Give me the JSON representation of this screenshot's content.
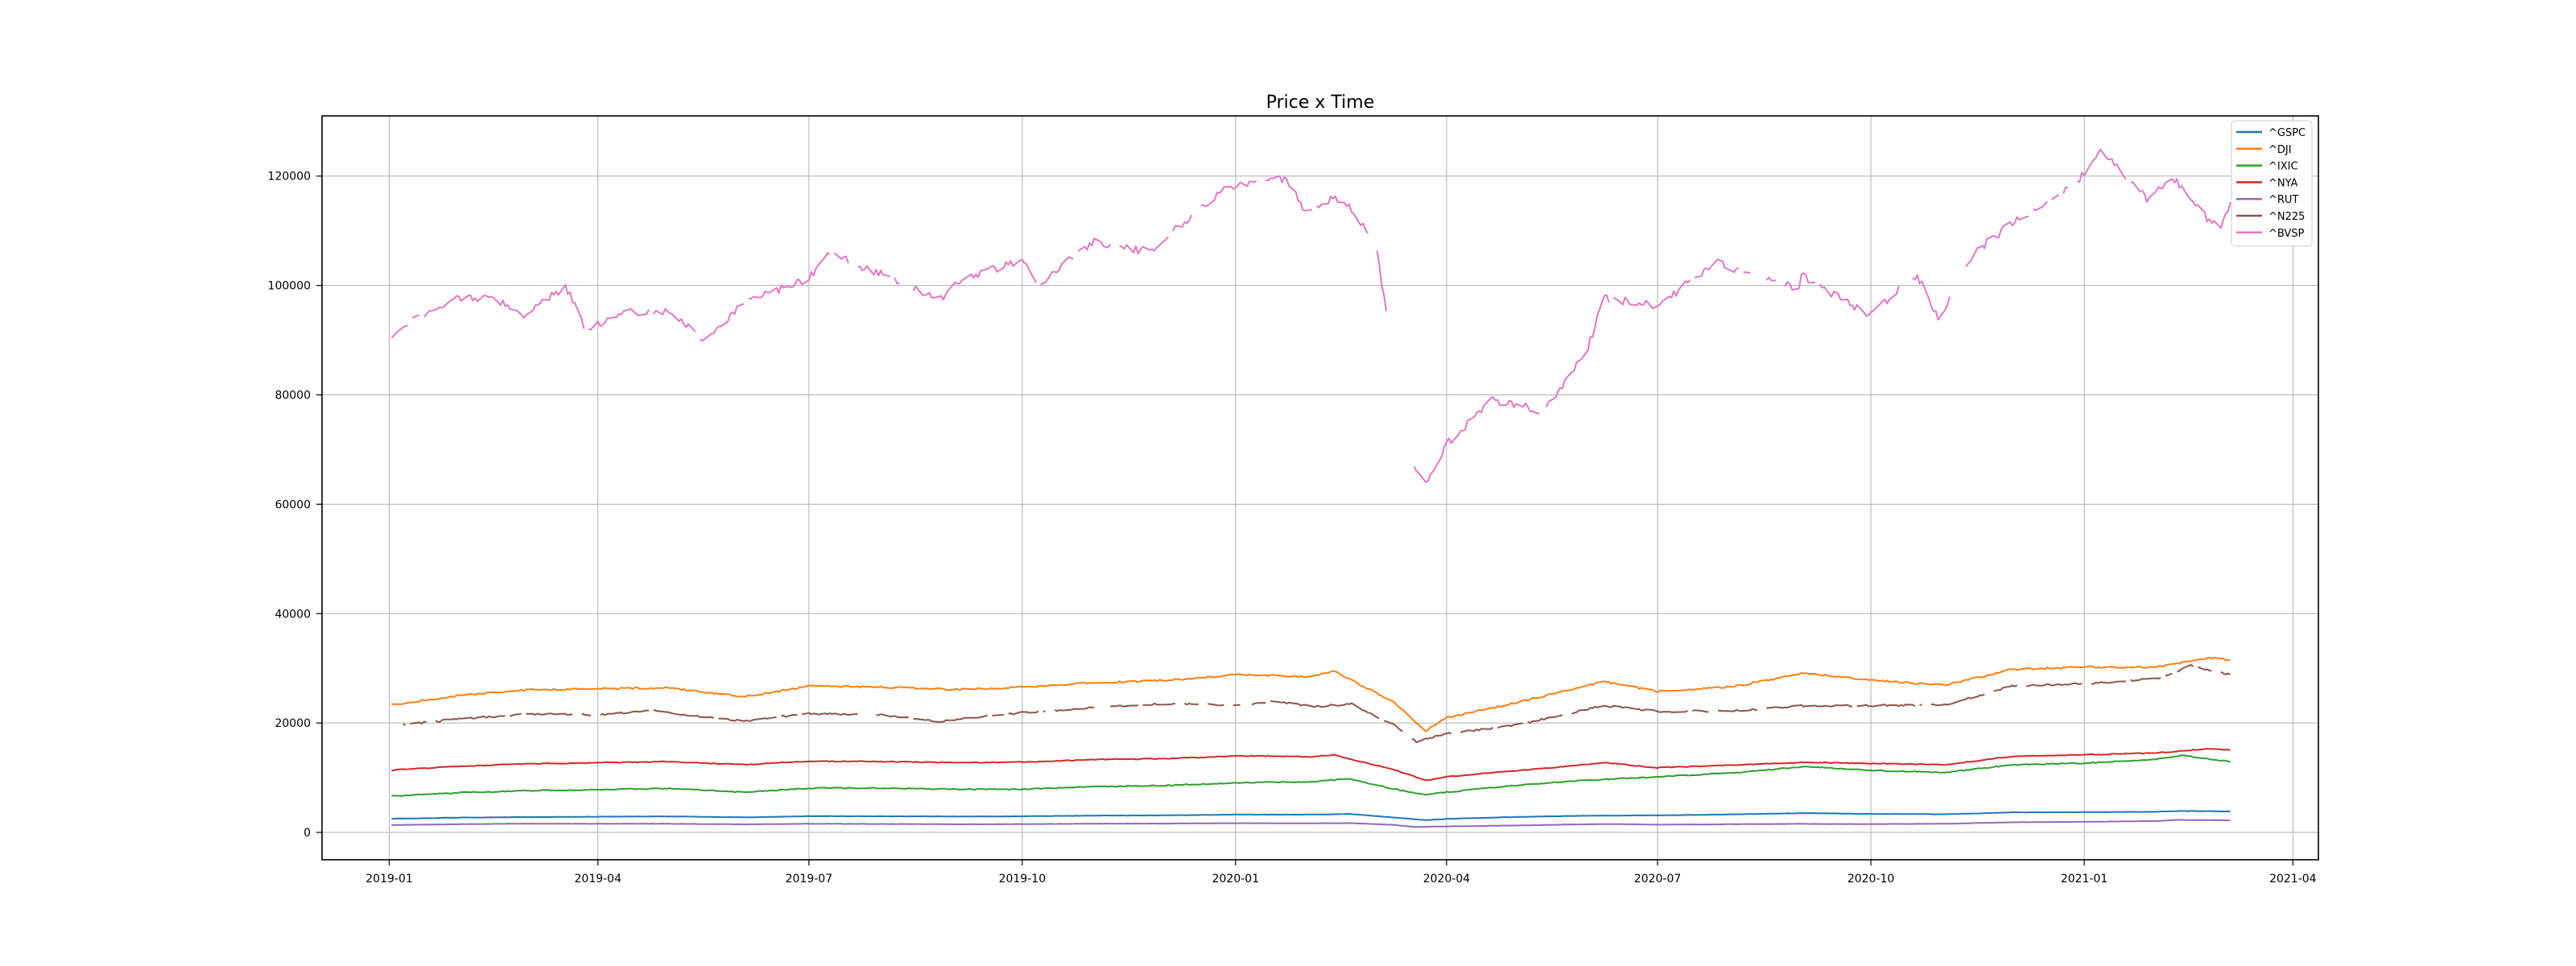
{
  "chart_data": {
    "type": "line",
    "title": "Price x Time",
    "xlabel": "",
    "ylabel": "",
    "x_ticks": [
      "2019-01",
      "2019-04",
      "2019-07",
      "2019-10",
      "2020-01",
      "2020-04",
      "2020-07",
      "2020-10",
      "2021-01",
      "2021-04"
    ],
    "y_ticks": [
      0,
      20000,
      40000,
      60000,
      80000,
      100000,
      120000
    ],
    "xlim": [
      "2018-12-03",
      "2021-04-12"
    ],
    "ylim": [
      -5000,
      131000
    ],
    "grid": true,
    "legend_position": "top-right",
    "series": [
      {
        "name": "^GSPC",
        "color": "#1f77b4",
        "points": [
          [
            "2019-01-02",
            2510
          ],
          [
            "2019-02-01",
            2706
          ],
          [
            "2019-03-01",
            2803
          ],
          [
            "2019-04-01",
            2867
          ],
          [
            "2019-05-01",
            2923
          ],
          [
            "2019-06-03",
            2744
          ],
          [
            "2019-07-01",
            2964
          ],
          [
            "2019-08-01",
            2953
          ],
          [
            "2019-09-03",
            2906
          ],
          [
            "2019-10-01",
            2940
          ],
          [
            "2019-11-01",
            3066
          ],
          [
            "2019-12-02",
            3113
          ],
          [
            "2020-01-02",
            3257
          ],
          [
            "2020-02-03",
            3248
          ],
          [
            "2020-02-19",
            3386
          ],
          [
            "2020-03-09",
            2746
          ],
          [
            "2020-03-23",
            2237
          ],
          [
            "2020-04-01",
            2470
          ],
          [
            "2020-05-01",
            2830
          ],
          [
            "2020-06-01",
            3055
          ],
          [
            "2020-07-01",
            3115
          ],
          [
            "2020-08-03",
            3294
          ],
          [
            "2020-09-01",
            3526
          ],
          [
            "2020-10-01",
            3380
          ],
          [
            "2020-11-02",
            3310
          ],
          [
            "2020-12-01",
            3662
          ],
          [
            "2021-01-04",
            3700
          ],
          [
            "2021-02-01",
            3773
          ],
          [
            "2021-02-12",
            3934
          ],
          [
            "2021-03-05",
            3840
          ]
        ]
      },
      {
        "name": "^DJI",
        "color": "#ff7f0e",
        "points": [
          [
            "2019-01-02",
            23346
          ],
          [
            "2019-02-01",
            25063
          ],
          [
            "2019-03-01",
            26026
          ],
          [
            "2019-04-01",
            26258
          ],
          [
            "2019-05-01",
            26430
          ],
          [
            "2019-06-03",
            24819
          ],
          [
            "2019-07-01",
            26717
          ],
          [
            "2019-08-01",
            26583
          ],
          [
            "2019-09-03",
            26118
          ],
          [
            "2019-10-01",
            26573
          ],
          [
            "2019-11-01",
            27347
          ],
          [
            "2019-12-02",
            27783
          ],
          [
            "2020-01-02",
            28868
          ],
          [
            "2020-02-03",
            28399
          ],
          [
            "2020-02-12",
            29551
          ],
          [
            "2020-03-09",
            23851
          ],
          [
            "2020-03-23",
            18591
          ],
          [
            "2020-04-01",
            20943
          ],
          [
            "2020-05-01",
            23724
          ],
          [
            "2020-06-08",
            27572
          ],
          [
            "2020-07-01",
            25734
          ],
          [
            "2020-08-03",
            26664
          ],
          [
            "2020-09-02",
            29100
          ],
          [
            "2020-10-01",
            27816
          ],
          [
            "2020-11-02",
            26925
          ],
          [
            "2020-12-01",
            29823
          ],
          [
            "2021-01-04",
            30223
          ],
          [
            "2021-02-01",
            30212
          ],
          [
            "2021-02-24",
            31961
          ],
          [
            "2021-03-05",
            31496
          ]
        ]
      },
      {
        "name": "^IXIC",
        "color": "#2ca02c",
        "points": [
          [
            "2019-01-02",
            6665
          ],
          [
            "2019-02-01",
            7263
          ],
          [
            "2019-03-01",
            7595
          ],
          [
            "2019-04-01",
            7828
          ],
          [
            "2019-05-01",
            8049
          ],
          [
            "2019-06-03",
            7333
          ],
          [
            "2019-07-01",
            8091
          ],
          [
            "2019-08-01",
            8111
          ],
          [
            "2019-09-03",
            7874
          ],
          [
            "2019-10-01",
            7908
          ],
          [
            "2019-11-01",
            8386
          ],
          [
            "2019-12-02",
            8567
          ],
          [
            "2020-01-02",
            9092
          ],
          [
            "2020-02-03",
            9273
          ],
          [
            "2020-02-19",
            9817
          ],
          [
            "2020-03-09",
            7950
          ],
          [
            "2020-03-23",
            6860
          ],
          [
            "2020-04-01",
            7360
          ],
          [
            "2020-05-01",
            8604
          ],
          [
            "2020-06-01",
            9552
          ],
          [
            "2020-07-01",
            10154
          ],
          [
            "2020-08-03",
            10902
          ],
          [
            "2020-09-02",
            12056
          ],
          [
            "2020-10-01",
            11326
          ],
          [
            "2020-11-02",
            10957
          ],
          [
            "2020-12-01",
            12355
          ],
          [
            "2021-01-04",
            12698
          ],
          [
            "2021-02-01",
            13403
          ],
          [
            "2021-02-12",
            14095
          ],
          [
            "2021-03-05",
            12920
          ]
        ]
      },
      {
        "name": "^NYA",
        "color": "#d62728",
        "points": [
          [
            "2019-01-02",
            11370
          ],
          [
            "2019-02-01",
            12110
          ],
          [
            "2019-03-01",
            12520
          ],
          [
            "2019-04-01",
            12750
          ],
          [
            "2019-05-01",
            12950
          ],
          [
            "2019-06-03",
            12380
          ],
          [
            "2019-07-01",
            13030
          ],
          [
            "2019-08-01",
            12960
          ],
          [
            "2019-09-03",
            12730
          ],
          [
            "2019-10-01",
            12850
          ],
          [
            "2019-11-01",
            13320
          ],
          [
            "2019-12-02",
            13450
          ],
          [
            "2020-01-02",
            14010
          ],
          [
            "2020-02-03",
            13830
          ],
          [
            "2020-02-12",
            14180
          ],
          [
            "2020-03-09",
            11560
          ],
          [
            "2020-03-23",
            9470
          ],
          [
            "2020-04-01",
            10180
          ],
          [
            "2020-05-01",
            11250
          ],
          [
            "2020-06-08",
            12720
          ],
          [
            "2020-07-01",
            11830
          ],
          [
            "2020-08-03",
            12320
          ],
          [
            "2020-09-02",
            12820
          ],
          [
            "2020-10-01",
            12600
          ],
          [
            "2020-11-02",
            12360
          ],
          [
            "2020-12-01",
            13920
          ],
          [
            "2021-01-04",
            14230
          ],
          [
            "2021-02-01",
            14520
          ],
          [
            "2021-02-24",
            15330
          ],
          [
            "2021-03-05",
            15050
          ]
        ]
      },
      {
        "name": "^RUT",
        "color": "#9467bd",
        "points": [
          [
            "2019-01-02",
            1349
          ],
          [
            "2019-02-01",
            1503
          ],
          [
            "2019-03-01",
            1590
          ],
          [
            "2019-04-01",
            1583
          ],
          [
            "2019-05-01",
            1591
          ],
          [
            "2019-06-03",
            1469
          ],
          [
            "2019-07-01",
            1567
          ],
          [
            "2019-08-01",
            1550
          ],
          [
            "2019-09-03",
            1477
          ],
          [
            "2019-10-01",
            1512
          ],
          [
            "2019-11-01",
            1596
          ],
          [
            "2019-12-02",
            1623
          ],
          [
            "2020-01-02",
            1683
          ],
          [
            "2020-02-03",
            1660
          ],
          [
            "2020-02-19",
            1700
          ],
          [
            "2020-03-09",
            1380
          ],
          [
            "2020-03-18",
            991
          ],
          [
            "2020-04-01",
            1090
          ],
          [
            "2020-05-01",
            1260
          ],
          [
            "2020-06-08",
            1536
          ],
          [
            "2020-07-01",
            1410
          ],
          [
            "2020-08-03",
            1495
          ],
          [
            "2020-09-01",
            1560
          ],
          [
            "2020-10-01",
            1522
          ],
          [
            "2020-11-02",
            1574
          ],
          [
            "2020-12-01",
            1846
          ],
          [
            "2021-01-04",
            1945
          ],
          [
            "2021-02-01",
            2076
          ],
          [
            "2021-02-09",
            2285
          ],
          [
            "2021-03-05",
            2192
          ]
        ]
      },
      {
        "name": "^N225",
        "color": "#8c564b",
        "gaps": true,
        "points": [
          [
            "2019-01-04",
            19561
          ],
          [
            "2019-02-01",
            20788
          ],
          [
            "2019-03-01",
            21602
          ],
          [
            "2019-04-01",
            21509
          ],
          [
            "2019-04-25",
            22307
          ],
          [
            "2019-05-13",
            21191
          ],
          [
            "2019-06-03",
            20410
          ],
          [
            "2019-07-01",
            21730
          ],
          [
            "2019-08-01",
            21540
          ],
          [
            "2019-08-26",
            20261
          ],
          [
            "2019-09-02",
            20620
          ],
          [
            "2019-10-01",
            21885
          ],
          [
            "2019-11-01",
            22850
          ],
          [
            "2019-12-02",
            23529
          ],
          [
            "2020-01-06",
            23204
          ],
          [
            "2020-01-17",
            24041
          ],
          [
            "2020-02-03",
            22971
          ],
          [
            "2020-02-20",
            23479
          ],
          [
            "2020-03-09",
            19698
          ],
          [
            "2020-03-19",
            16552
          ],
          [
            "2020-04-01",
            18065
          ],
          [
            "2020-05-01",
            19619
          ],
          [
            "2020-06-08",
            23178
          ],
          [
            "2020-07-01",
            22121
          ],
          [
            "2020-08-03",
            22195
          ],
          [
            "2020-09-01",
            23138
          ],
          [
            "2020-10-01",
            23185
          ],
          [
            "2020-11-02",
            23295
          ],
          [
            "2020-12-01",
            26787
          ],
          [
            "2021-01-04",
            27258
          ],
          [
            "2021-02-01",
            28091
          ],
          [
            "2021-02-16",
            30467
          ],
          [
            "2021-03-05",
            28864
          ]
        ]
      },
      {
        "name": "^BVSP",
        "color": "#e377c2",
        "gaps": true,
        "points": [
          [
            "2019-01-02",
            91012
          ],
          [
            "2019-01-14",
            94474
          ],
          [
            "2019-02-01",
            97861
          ],
          [
            "2019-02-15",
            97526
          ],
          [
            "2019-03-01",
            94604
          ],
          [
            "2019-03-18",
            99993
          ],
          [
            "2019-03-27",
            91903
          ],
          [
            "2019-04-10",
            95000
          ],
          [
            "2019-05-03",
            95064
          ],
          [
            "2019-05-17",
            89993
          ],
          [
            "2019-06-03",
            97020
          ],
          [
            "2019-07-01",
            101339
          ],
          [
            "2019-07-10",
            105817
          ],
          [
            "2019-08-01",
            102126
          ],
          [
            "2019-08-26",
            97276
          ],
          [
            "2019-09-03",
            100625
          ],
          [
            "2019-10-01",
            104745
          ],
          [
            "2019-10-08",
            99981
          ],
          [
            "2019-11-01",
            108195
          ],
          [
            "2019-11-26",
            106000
          ],
          [
            "2019-12-02",
            108927
          ],
          [
            "2019-12-26",
            117203
          ],
          [
            "2020-01-02",
            118573
          ],
          [
            "2020-01-23",
            119527
          ],
          [
            "2020-01-31",
            113761
          ],
          [
            "2020-02-13",
            116000
          ],
          [
            "2020-02-21",
            113681
          ],
          [
            "2020-03-02",
            106625
          ],
          [
            "2020-03-09",
            86067
          ],
          [
            "2020-03-18",
            66895
          ],
          [
            "2020-03-23",
            63570
          ],
          [
            "2020-04-01",
            70967
          ],
          [
            "2020-04-20",
            79000
          ],
          [
            "2020-05-13",
            77000
          ],
          [
            "2020-06-01",
            88620
          ],
          [
            "2020-06-08",
            97645
          ],
          [
            "2020-07-01",
            96235
          ],
          [
            "2020-07-27",
            104477
          ],
          [
            "2020-08-03",
            102912
          ],
          [
            "2020-08-31",
            99369
          ],
          [
            "2020-09-01",
            101911
          ],
          [
            "2020-09-30",
            94603
          ],
          [
            "2020-10-21",
            101917
          ],
          [
            "2020-10-30",
            93952
          ],
          [
            "2020-11-16",
            106430
          ],
          [
            "2020-12-01",
            111399
          ],
          [
            "2020-12-30",
            119306
          ],
          [
            "2021-01-08",
            125077
          ],
          [
            "2021-01-28",
            115882
          ],
          [
            "2021-02-08",
            119987
          ],
          [
            "2021-02-22",
            112667
          ],
          [
            "2021-03-01",
            110335
          ],
          [
            "2021-03-05",
            115202
          ]
        ]
      }
    ]
  }
}
